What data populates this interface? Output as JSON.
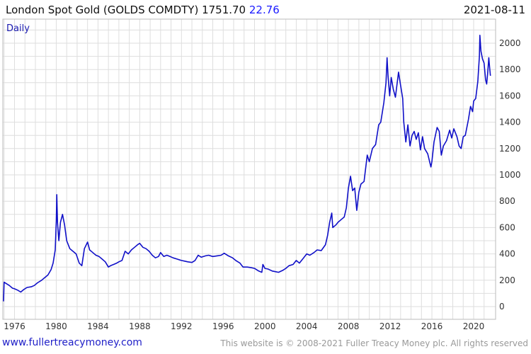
{
  "header": {
    "title": "London Spot Gold (GOLDS COMDTY) 1751.70",
    "change": "22.76",
    "date": "2021-08-11"
  },
  "footer": {
    "website": "www.fullertreacymoney.com",
    "copyright": "This website is © 2008-2021 Fuller Treacy Money plc. All rights reserved"
  },
  "chart_data": {
    "type": "line",
    "frequency_label": "Daily",
    "x_ticks": [
      "1976",
      "1980",
      "1984",
      "1988",
      "1992",
      "1996",
      "2000",
      "2004",
      "2008",
      "2012",
      "2016",
      "2020"
    ],
    "y_ticks": [
      0,
      200,
      400,
      600,
      800,
      1000,
      1200,
      1400,
      1600,
      1800,
      2000
    ],
    "ylim": [
      0,
      2100
    ],
    "xlim": [
      1974.9,
      2021.61
    ],
    "grid": true,
    "y_axis_position": "right",
    "line_color": "#1010c8",
    "series": [
      {
        "points": [
          [
            1974.95,
            40
          ],
          [
            1975.0,
            185
          ],
          [
            1975.2,
            175
          ],
          [
            1975.5,
            160
          ],
          [
            1975.8,
            140
          ],
          [
            1976.0,
            135
          ],
          [
            1976.3,
            125
          ],
          [
            1976.6,
            110
          ],
          [
            1976.9,
            130
          ],
          [
            1977.2,
            145
          ],
          [
            1977.6,
            150
          ],
          [
            1977.9,
            160
          ],
          [
            1978.2,
            180
          ],
          [
            1978.6,
            200
          ],
          [
            1978.9,
            220
          ],
          [
            1979.2,
            240
          ],
          [
            1979.5,
            280
          ],
          [
            1979.7,
            330
          ],
          [
            1979.9,
            430
          ],
          [
            1980.0,
            650
          ],
          [
            1980.05,
            850
          ],
          [
            1980.12,
            640
          ],
          [
            1980.25,
            500
          ],
          [
            1980.4,
            640
          ],
          [
            1980.6,
            700
          ],
          [
            1980.8,
            620
          ],
          [
            1981.0,
            500
          ],
          [
            1981.3,
            440
          ],
          [
            1981.6,
            420
          ],
          [
            1981.9,
            400
          ],
          [
            1982.2,
            330
          ],
          [
            1982.45,
            310
          ],
          [
            1982.7,
            440
          ],
          [
            1983.0,
            490
          ],
          [
            1983.2,
            430
          ],
          [
            1983.5,
            410
          ],
          [
            1983.8,
            390
          ],
          [
            1984.1,
            380
          ],
          [
            1984.4,
            360
          ],
          [
            1984.7,
            340
          ],
          [
            1985.0,
            300
          ],
          [
            1985.2,
            310
          ],
          [
            1985.5,
            320
          ],
          [
            1985.8,
            330
          ],
          [
            1986.0,
            340
          ],
          [
            1986.3,
            350
          ],
          [
            1986.6,
            420
          ],
          [
            1986.9,
            400
          ],
          [
            1987.2,
            430
          ],
          [
            1987.5,
            450
          ],
          [
            1987.8,
            470
          ],
          [
            1988.0,
            480
          ],
          [
            1988.3,
            450
          ],
          [
            1988.6,
            440
          ],
          [
            1988.9,
            420
          ],
          [
            1989.2,
            390
          ],
          [
            1989.5,
            370
          ],
          [
            1989.8,
            380
          ],
          [
            1990.0,
            410
          ],
          [
            1990.3,
            380
          ],
          [
            1990.6,
            390
          ],
          [
            1990.9,
            380
          ],
          [
            1991.2,
            370
          ],
          [
            1991.6,
            360
          ],
          [
            1992.0,
            350
          ],
          [
            1992.3,
            345
          ],
          [
            1992.6,
            340
          ],
          [
            1993.0,
            335
          ],
          [
            1993.3,
            350
          ],
          [
            1993.6,
            390
          ],
          [
            1993.9,
            375
          ],
          [
            1994.3,
            385
          ],
          [
            1994.6,
            390
          ],
          [
            1995.0,
            380
          ],
          [
            1995.4,
            385
          ],
          [
            1995.8,
            390
          ],
          [
            1996.1,
            405
          ],
          [
            1996.5,
            385
          ],
          [
            1996.9,
            370
          ],
          [
            1997.2,
            350
          ],
          [
            1997.6,
            330
          ],
          [
            1997.9,
            300
          ],
          [
            1998.3,
            300
          ],
          [
            1998.7,
            295
          ],
          [
            1999.0,
            290
          ],
          [
            1999.4,
            270
          ],
          [
            1999.7,
            260
          ],
          [
            1999.8,
            320
          ],
          [
            2000.0,
            290
          ],
          [
            2000.3,
            285
          ],
          [
            2000.7,
            270
          ],
          [
            2001.0,
            265
          ],
          [
            2001.3,
            260
          ],
          [
            2001.7,
            275
          ],
          [
            2002.0,
            290
          ],
          [
            2002.3,
            310
          ],
          [
            2002.7,
            320
          ],
          [
            2003.0,
            350
          ],
          [
            2003.3,
            330
          ],
          [
            2003.7,
            370
          ],
          [
            2004.0,
            400
          ],
          [
            2004.3,
            390
          ],
          [
            2004.7,
            410
          ],
          [
            2005.0,
            430
          ],
          [
            2005.4,
            425
          ],
          [
            2005.8,
            470
          ],
          [
            2006.0,
            540
          ],
          [
            2006.2,
            640
          ],
          [
            2006.4,
            710
          ],
          [
            2006.5,
            600
          ],
          [
            2006.8,
            620
          ],
          [
            2007.0,
            640
          ],
          [
            2007.3,
            660
          ],
          [
            2007.6,
            680
          ],
          [
            2007.8,
            750
          ],
          [
            2008.0,
            900
          ],
          [
            2008.2,
            990
          ],
          [
            2008.4,
            880
          ],
          [
            2008.6,
            900
          ],
          [
            2008.8,
            730
          ],
          [
            2009.0,
            870
          ],
          [
            2009.2,
            930
          ],
          [
            2009.5,
            950
          ],
          [
            2009.8,
            1150
          ],
          [
            2010.0,
            1100
          ],
          [
            2010.3,
            1200
          ],
          [
            2010.6,
            1230
          ],
          [
            2010.9,
            1380
          ],
          [
            2011.1,
            1400
          ],
          [
            2011.4,
            1550
          ],
          [
            2011.6,
            1700
          ],
          [
            2011.7,
            1890
          ],
          [
            2011.8,
            1750
          ],
          [
            2011.95,
            1600
          ],
          [
            2012.1,
            1740
          ],
          [
            2012.3,
            1650
          ],
          [
            2012.5,
            1590
          ],
          [
            2012.8,
            1780
          ],
          [
            2013.0,
            1680
          ],
          [
            2013.2,
            1580
          ],
          [
            2013.3,
            1400
          ],
          [
            2013.5,
            1250
          ],
          [
            2013.7,
            1380
          ],
          [
            2013.9,
            1220
          ],
          [
            2014.1,
            1300
          ],
          [
            2014.3,
            1330
          ],
          [
            2014.5,
            1270
          ],
          [
            2014.7,
            1320
          ],
          [
            2014.9,
            1190
          ],
          [
            2015.1,
            1290
          ],
          [
            2015.3,
            1200
          ],
          [
            2015.6,
            1160
          ],
          [
            2015.9,
            1060
          ],
          [
            2016.0,
            1100
          ],
          [
            2016.2,
            1250
          ],
          [
            2016.5,
            1360
          ],
          [
            2016.7,
            1330
          ],
          [
            2016.9,
            1150
          ],
          [
            2017.1,
            1220
          ],
          [
            2017.4,
            1260
          ],
          [
            2017.7,
            1340
          ],
          [
            2017.9,
            1280
          ],
          [
            2018.1,
            1350
          ],
          [
            2018.4,
            1290
          ],
          [
            2018.6,
            1220
          ],
          [
            2018.8,
            1200
          ],
          [
            2019.0,
            1290
          ],
          [
            2019.2,
            1300
          ],
          [
            2019.5,
            1420
          ],
          [
            2019.7,
            1520
          ],
          [
            2019.9,
            1480
          ],
          [
            2020.0,
            1560
          ],
          [
            2020.2,
            1580
          ],
          [
            2020.4,
            1710
          ],
          [
            2020.55,
            1900
          ],
          [
            2020.6,
            2060
          ],
          [
            2020.7,
            1940
          ],
          [
            2020.85,
            1880
          ],
          [
            2021.0,
            1850
          ],
          [
            2021.15,
            1720
          ],
          [
            2021.25,
            1690
          ],
          [
            2021.35,
            1780
          ],
          [
            2021.45,
            1890
          ],
          [
            2021.55,
            1800
          ],
          [
            2021.61,
            1752
          ]
        ]
      }
    ]
  }
}
